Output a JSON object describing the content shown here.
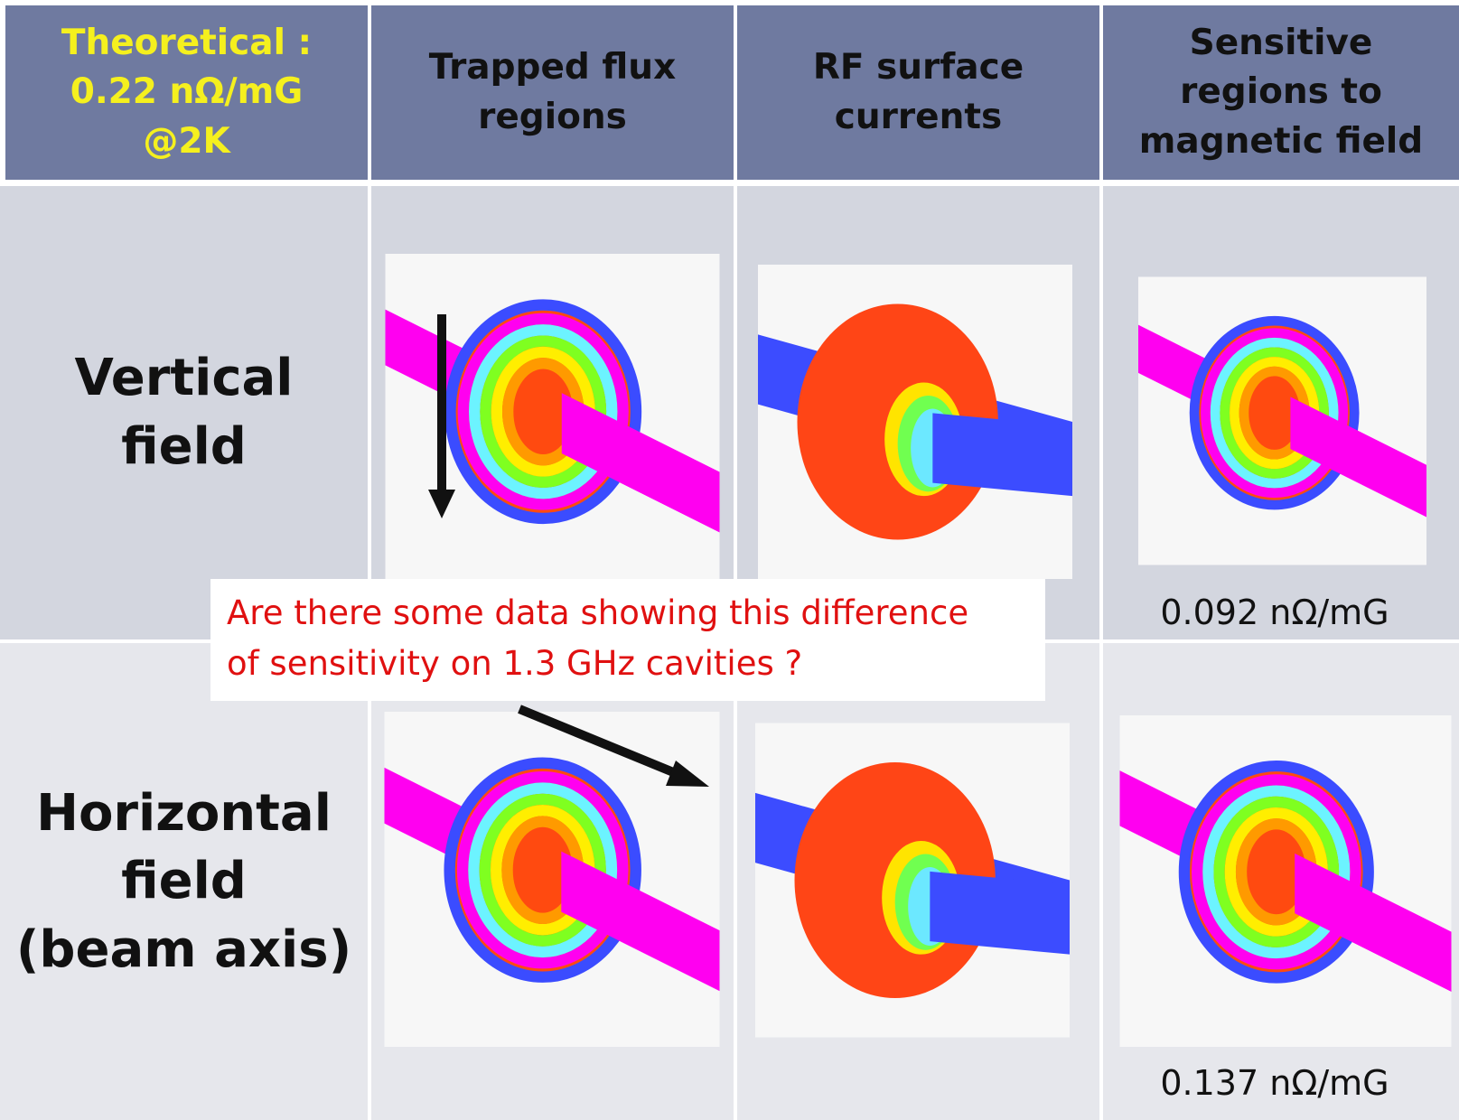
{
  "header": {
    "theory": [
      "Theoretical :",
      "0.22 nΩ/mG",
      "@2K"
    ],
    "columns": [
      [
        "Trapped flux",
        "regions"
      ],
      [
        "RF surface",
        "currents"
      ],
      [
        "Sensitive",
        "regions to",
        "magnetic field"
      ]
    ]
  },
  "rows": [
    {
      "label": [
        "Vertical",
        "field"
      ],
      "value": "0.092 nΩ/mG"
    },
    {
      "label": [
        "Horizontal",
        "field",
        "(beam axis)"
      ],
      "value": "0.137 nΩ/mG"
    }
  ],
  "callout": [
    "Are there some data showing this difference",
    "of sensitivity on 1.3 GHz cavities ?"
  ]
}
